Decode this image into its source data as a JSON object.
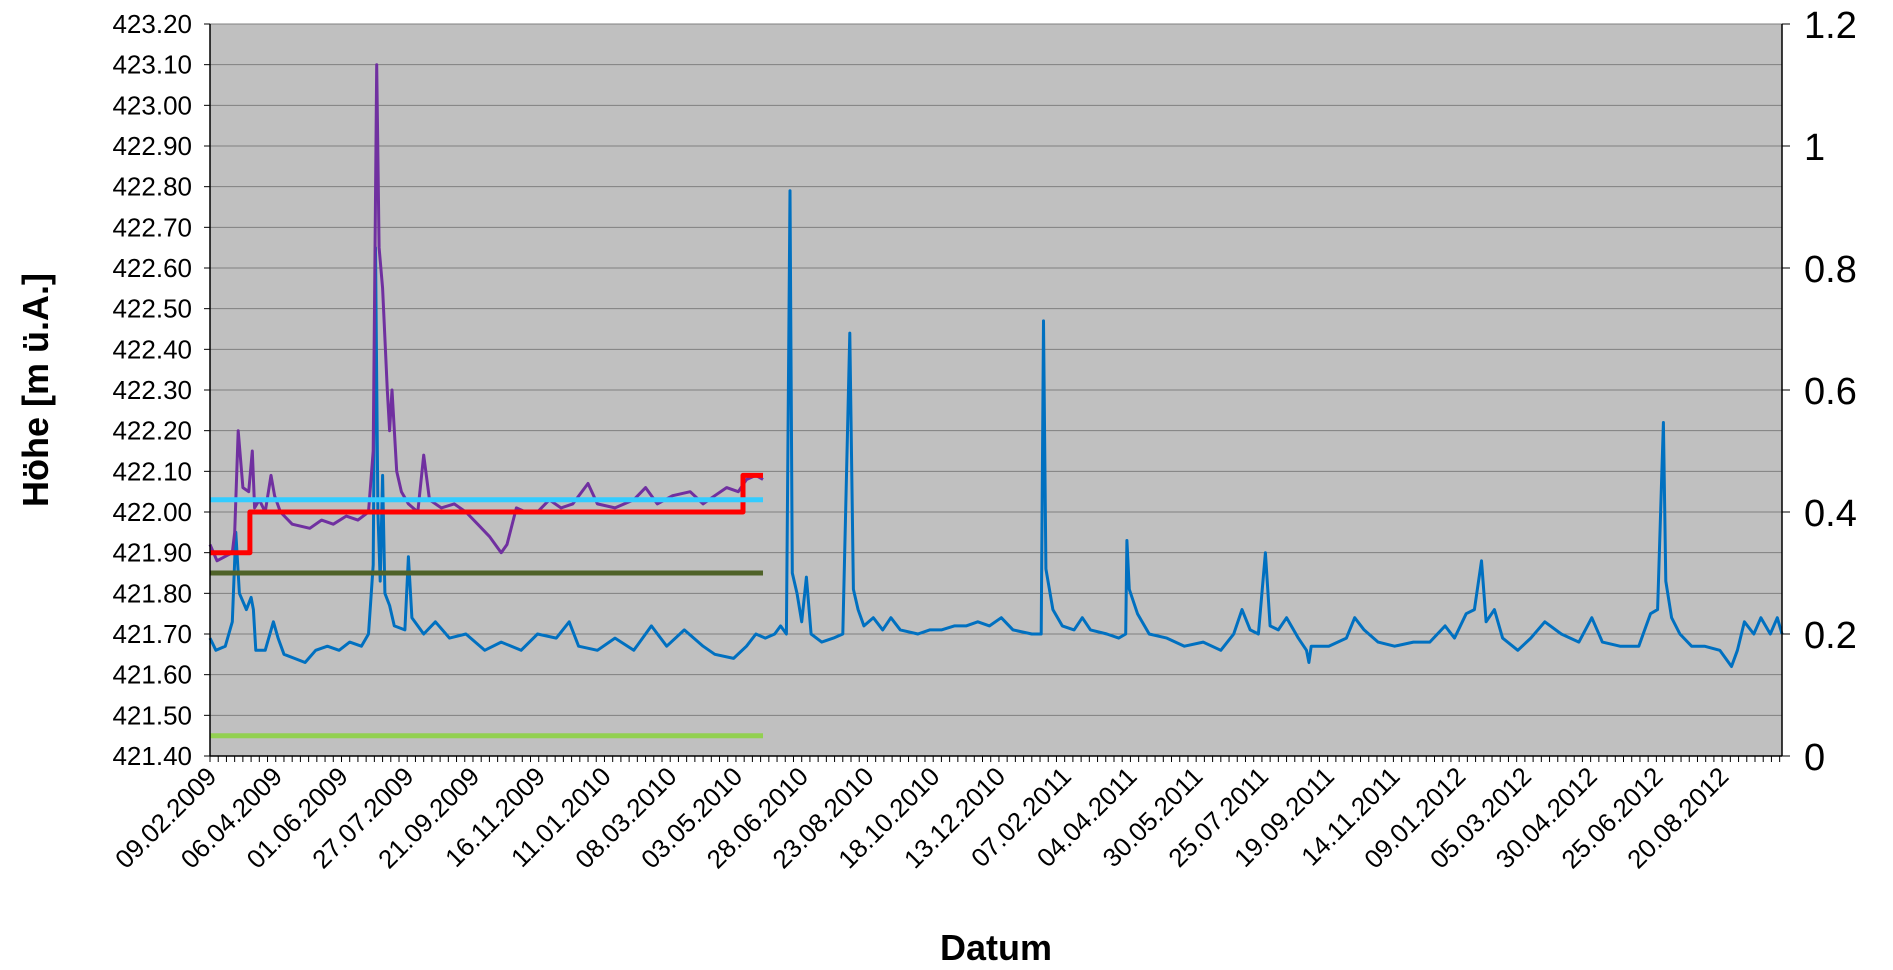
{
  "chart_data": {
    "type": "line",
    "title": "",
    "xlabel": "Datum",
    "ylabel": "Höhe [m ü.A.]",
    "ylim": [
      421.4,
      423.2
    ],
    "y2lim": [
      0,
      1.2
    ],
    "y_ticks": [
      "421.40",
      "421.50",
      "421.60",
      "421.70",
      "421.80",
      "421.90",
      "422.00",
      "422.10",
      "422.20",
      "422.30",
      "422.40",
      "422.50",
      "422.60",
      "422.70",
      "422.80",
      "422.90",
      "423.00",
      "423.10",
      "423.20"
    ],
    "y2_ticks": [
      "0",
      "0.2",
      "0.4",
      "0.6",
      "0.8",
      "1",
      "1.2"
    ],
    "x_ticks": [
      "09.02.2009",
      "06.04.2009",
      "01.06.2009",
      "27.07.2009",
      "21.09.2009",
      "16.11.2009",
      "11.01.2010",
      "08.03.2010",
      "03.05.2010",
      "28.06.2010",
      "23.08.2010",
      "18.10.2010",
      "13.12.2010",
      "07.02.2011",
      "04.04.2011",
      "30.05.2011",
      "25.07.2011",
      "19.09.2011",
      "14.11.2011",
      "09.01.2012",
      "05.03.2012",
      "30.04.2012",
      "25.06.2012",
      "20.08.2012"
    ],
    "grid": true,
    "legend": "none",
    "background": "#c0c0c0",
    "series": [
      {
        "color": "#0070c0",
        "axis": "left",
        "points": [
          [
            "2009-02-09",
            421.69
          ],
          [
            "2009-02-14",
            421.66
          ],
          [
            "2009-02-22",
            421.67
          ],
          [
            "2009-02-28",
            421.73
          ],
          [
            "2009-03-03",
            421.95
          ],
          [
            "2009-03-06",
            421.8
          ],
          [
            "2009-03-12",
            421.76
          ],
          [
            "2009-03-16",
            421.79
          ],
          [
            "2009-03-18",
            421.76
          ],
          [
            "2009-03-20",
            421.66
          ],
          [
            "2009-03-28",
            421.66
          ],
          [
            "2009-04-04",
            421.73
          ],
          [
            "2009-04-08",
            421.69
          ],
          [
            "2009-04-13",
            421.65
          ],
          [
            "2009-04-22",
            421.64
          ],
          [
            "2009-05-01",
            421.63
          ],
          [
            "2009-05-10",
            421.66
          ],
          [
            "2009-05-20",
            421.67
          ],
          [
            "2009-05-30",
            421.66
          ],
          [
            "2009-06-08",
            421.68
          ],
          [
            "2009-06-18",
            421.67
          ],
          [
            "2009-06-24",
            421.7
          ],
          [
            "2009-06-28",
            421.87
          ],
          [
            "2009-06-30",
            422.65
          ],
          [
            "2009-07-02",
            422.0
          ],
          [
            "2009-07-04",
            421.83
          ],
          [
            "2009-07-06",
            422.09
          ],
          [
            "2009-07-08",
            421.8
          ],
          [
            "2009-07-12",
            421.77
          ],
          [
            "2009-07-16",
            421.72
          ],
          [
            "2009-07-25",
            421.71
          ],
          [
            "2009-07-28",
            421.89
          ],
          [
            "2009-07-31",
            421.74
          ],
          [
            "2009-08-10",
            421.7
          ],
          [
            "2009-08-20",
            421.73
          ],
          [
            "2009-09-01",
            421.69
          ],
          [
            "2009-09-15",
            421.7
          ],
          [
            "2009-10-01",
            421.66
          ],
          [
            "2009-10-15",
            421.68
          ],
          [
            "2009-11-01",
            421.66
          ],
          [
            "2009-11-15",
            421.7
          ],
          [
            "2009-12-01",
            421.69
          ],
          [
            "2009-12-12",
            421.73
          ],
          [
            "2009-12-20",
            421.67
          ],
          [
            "2010-01-05",
            421.66
          ],
          [
            "2010-01-20",
            421.69
          ],
          [
            "2010-02-05",
            421.66
          ],
          [
            "2010-02-20",
            421.72
          ],
          [
            "2010-03-05",
            421.67
          ],
          [
            "2010-03-20",
            421.71
          ],
          [
            "2010-04-05",
            421.67
          ],
          [
            "2010-04-15",
            421.65
          ],
          [
            "2010-05-01",
            421.64
          ],
          [
            "2010-05-12",
            421.67
          ],
          [
            "2010-05-20",
            421.7
          ],
          [
            "2010-05-28",
            421.69
          ],
          [
            "2010-06-05",
            421.7
          ],
          [
            "2010-06-10",
            421.72
          ],
          [
            "2010-06-15",
            421.7
          ],
          [
            "2010-06-18",
            422.79
          ],
          [
            "2010-06-20",
            421.85
          ],
          [
            "2010-06-24",
            421.8
          ],
          [
            "2010-06-28",
            421.73
          ],
          [
            "2010-07-02",
            421.84
          ],
          [
            "2010-07-06",
            421.7
          ],
          [
            "2010-07-15",
            421.68
          ],
          [
            "2010-07-25",
            421.69
          ],
          [
            "2010-08-02",
            421.7
          ],
          [
            "2010-08-08",
            422.44
          ],
          [
            "2010-08-11",
            421.81
          ],
          [
            "2010-08-15",
            421.76
          ],
          [
            "2010-08-20",
            421.72
          ],
          [
            "2010-08-28",
            421.74
          ],
          [
            "2010-09-05",
            421.71
          ],
          [
            "2010-09-12",
            421.74
          ],
          [
            "2010-09-20",
            421.71
          ],
          [
            "2010-10-05",
            421.7
          ],
          [
            "2010-10-15",
            421.71
          ],
          [
            "2010-10-25",
            421.71
          ],
          [
            "2010-11-05",
            421.72
          ],
          [
            "2010-11-15",
            421.72
          ],
          [
            "2010-11-25",
            421.73
          ],
          [
            "2010-12-05",
            421.72
          ],
          [
            "2010-12-15",
            421.74
          ],
          [
            "2010-12-25",
            421.71
          ],
          [
            "2011-01-10",
            421.7
          ],
          [
            "2011-01-18",
            421.7
          ],
          [
            "2011-01-20",
            422.47
          ],
          [
            "2011-01-22",
            421.86
          ],
          [
            "2011-01-28",
            421.76
          ],
          [
            "2011-02-05",
            421.72
          ],
          [
            "2011-02-15",
            421.71
          ],
          [
            "2011-02-22",
            421.74
          ],
          [
            "2011-03-01",
            421.71
          ],
          [
            "2011-03-15",
            421.7
          ],
          [
            "2011-03-25",
            421.69
          ],
          [
            "2011-03-31",
            421.7
          ],
          [
            "2011-04-01",
            421.93
          ],
          [
            "2011-04-03",
            421.81
          ],
          [
            "2011-04-10",
            421.75
          ],
          [
            "2011-04-20",
            421.7
          ],
          [
            "2011-05-05",
            421.69
          ],
          [
            "2011-05-20",
            421.67
          ],
          [
            "2011-06-05",
            421.68
          ],
          [
            "2011-06-20",
            421.66
          ],
          [
            "2011-07-01",
            421.7
          ],
          [
            "2011-07-08",
            421.76
          ],
          [
            "2011-07-15",
            421.71
          ],
          [
            "2011-07-22",
            421.7
          ],
          [
            "2011-07-28",
            421.9
          ],
          [
            "2011-08-01",
            421.72
          ],
          [
            "2011-08-08",
            421.71
          ],
          [
            "2011-08-15",
            421.74
          ],
          [
            "2011-08-25",
            421.69
          ],
          [
            "2011-09-01",
            421.66
          ],
          [
            "2011-09-03",
            421.63
          ],
          [
            "2011-09-05",
            421.67
          ],
          [
            "2011-09-20",
            421.67
          ],
          [
            "2011-10-05",
            421.69
          ],
          [
            "2011-10-12",
            421.74
          ],
          [
            "2011-10-20",
            421.71
          ],
          [
            "2011-11-01",
            421.68
          ],
          [
            "2011-11-15",
            421.67
          ],
          [
            "2011-12-01",
            421.68
          ],
          [
            "2011-12-15",
            421.68
          ],
          [
            "2011-12-28",
            421.72
          ],
          [
            "2012-01-05",
            421.69
          ],
          [
            "2012-01-15",
            421.75
          ],
          [
            "2012-01-22",
            421.76
          ],
          [
            "2012-01-28",
            421.88
          ],
          [
            "2012-02-01",
            421.73
          ],
          [
            "2012-02-08",
            421.76
          ],
          [
            "2012-02-15",
            421.69
          ],
          [
            "2012-02-28",
            421.66
          ],
          [
            "2012-03-10",
            421.69
          ],
          [
            "2012-03-22",
            421.73
          ],
          [
            "2012-04-05",
            421.7
          ],
          [
            "2012-04-20",
            421.68
          ],
          [
            "2012-05-01",
            421.74
          ],
          [
            "2012-05-10",
            421.68
          ],
          [
            "2012-05-25",
            421.67
          ],
          [
            "2012-06-10",
            421.67
          ],
          [
            "2012-06-20",
            421.75
          ],
          [
            "2012-06-26",
            421.76
          ],
          [
            "2012-07-01",
            422.22
          ],
          [
            "2012-07-03",
            421.83
          ],
          [
            "2012-07-08",
            421.74
          ],
          [
            "2012-07-15",
            421.7
          ],
          [
            "2012-07-25",
            421.67
          ],
          [
            "2012-08-05",
            421.67
          ],
          [
            "2012-08-18",
            421.66
          ],
          [
            "2012-08-28",
            421.62
          ],
          [
            "2012-09-02",
            421.66
          ],
          [
            "2012-09-08",
            421.73
          ],
          [
            "2012-09-16",
            421.7
          ],
          [
            "2012-09-22",
            421.74
          ],
          [
            "2012-09-30",
            421.7
          ],
          [
            "2012-10-06",
            421.74
          ],
          [
            "2012-10-10",
            421.7
          ]
        ]
      },
      {
        "color": "#7030a0",
        "axis": "left",
        "points": [
          [
            "2009-02-09",
            421.92
          ],
          [
            "2009-02-15",
            421.88
          ],
          [
            "2009-02-28",
            421.9
          ],
          [
            "2009-03-02",
            421.95
          ],
          [
            "2009-03-05",
            422.2
          ],
          [
            "2009-03-09",
            422.06
          ],
          [
            "2009-03-14",
            422.05
          ],
          [
            "2009-03-17",
            422.15
          ],
          [
            "2009-03-19",
            422.01
          ],
          [
            "2009-03-23",
            422.03
          ],
          [
            "2009-03-28",
            422.0
          ],
          [
            "2009-04-02",
            422.09
          ],
          [
            "2009-04-05",
            422.04
          ],
          [
            "2009-04-10",
            422.0
          ],
          [
            "2009-04-20",
            421.97
          ],
          [
            "2009-05-05",
            421.96
          ],
          [
            "2009-05-15",
            421.98
          ],
          [
            "2009-05-25",
            421.97
          ],
          [
            "2009-06-05",
            421.99
          ],
          [
            "2009-06-15",
            421.98
          ],
          [
            "2009-06-24",
            422.0
          ],
          [
            "2009-06-28",
            422.15
          ],
          [
            "2009-07-01",
            423.1
          ],
          [
            "2009-07-03",
            422.65
          ],
          [
            "2009-07-06",
            422.55
          ],
          [
            "2009-07-10",
            422.3
          ],
          [
            "2009-07-12",
            422.2
          ],
          [
            "2009-07-14",
            422.3
          ],
          [
            "2009-07-18",
            422.1
          ],
          [
            "2009-07-22",
            422.05
          ],
          [
            "2009-07-28",
            422.02
          ],
          [
            "2009-08-05",
            422.0
          ],
          [
            "2009-08-10",
            422.14
          ],
          [
            "2009-08-15",
            422.03
          ],
          [
            "2009-08-25",
            422.01
          ],
          [
            "2009-09-05",
            422.02
          ],
          [
            "2009-09-15",
            422.0
          ],
          [
            "2009-09-25",
            421.97
          ],
          [
            "2009-10-05",
            421.94
          ],
          [
            "2009-10-15",
            421.9
          ],
          [
            "2009-10-20",
            421.92
          ],
          [
            "2009-10-28",
            422.01
          ],
          [
            "2009-11-05",
            422.0
          ],
          [
            "2009-11-15",
            422.0
          ],
          [
            "2009-11-25",
            422.03
          ],
          [
            "2009-12-05",
            422.01
          ],
          [
            "2009-12-15",
            422.02
          ],
          [
            "2009-12-28",
            422.07
          ],
          [
            "2010-01-05",
            422.02
          ],
          [
            "2010-01-20",
            422.01
          ],
          [
            "2010-02-05",
            422.03
          ],
          [
            "2010-02-15",
            422.06
          ],
          [
            "2010-02-25",
            422.02
          ],
          [
            "2010-03-10",
            422.04
          ],
          [
            "2010-03-25",
            422.05
          ],
          [
            "2010-04-05",
            422.02
          ],
          [
            "2010-04-15",
            422.04
          ],
          [
            "2010-04-25",
            422.06
          ],
          [
            "2010-05-05",
            422.05
          ],
          [
            "2010-05-12",
            422.08
          ],
          [
            "2010-05-20",
            422.09
          ],
          [
            "2010-05-26",
            422.08
          ]
        ]
      },
      {
        "color": "#ff0000",
        "axis": "left",
        "step": true,
        "points": [
          [
            "2009-02-09",
            421.9
          ],
          [
            "2009-03-15",
            421.9
          ],
          [
            "2009-03-15",
            422.0
          ],
          [
            "2010-05-09",
            422.0
          ],
          [
            "2010-05-09",
            422.09
          ],
          [
            "2010-05-26",
            422.09
          ]
        ]
      },
      {
        "color": "#33ccff",
        "axis": "left",
        "points": [
          [
            "2009-02-09",
            422.03
          ],
          [
            "2010-05-26",
            422.03
          ]
        ]
      },
      {
        "color": "#4f6228",
        "axis": "left",
        "points": [
          [
            "2009-02-09",
            421.85
          ],
          [
            "2010-05-26",
            421.85
          ]
        ]
      },
      {
        "color": "#92d050",
        "axis": "left",
        "points": [
          [
            "2009-02-09",
            421.45
          ],
          [
            "2010-05-26",
            421.45
          ]
        ]
      }
    ]
  }
}
